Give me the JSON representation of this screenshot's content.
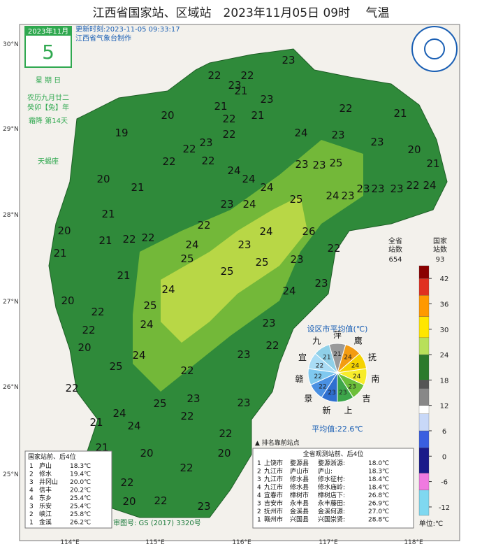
{
  "title": "江西省国家站、区域站　2023年11月05日 09时　 气温",
  "date_box": {
    "month": "2023年11月",
    "day": "5",
    "weekday": "星 期 日",
    "lunar": "农历九月廿二",
    "year": "癸卯【兔】年",
    "term": "霜降 第14天",
    "zodiac": "天蝎座"
  },
  "update": "更新时刻:2023-11-05 09:33:17",
  "maker": "江西省气象台制作",
  "lat_labels": [
    "30°N",
    "29°N",
    "28°N",
    "27°N",
    "26°N",
    "25°N"
  ],
  "lon_labels": [
    "114°E",
    "115°E",
    "116°E",
    "117°E",
    "118°E"
  ],
  "stations": [
    22,
    22,
    23,
    23,
    21,
    23,
    21,
    21,
    22,
    21,
    20,
    22,
    19,
    22,
    24,
    23,
    22,
    23,
    23,
    25,
    23,
    20,
    21,
    22,
    22,
    24,
    24,
    24,
    23,
    23,
    23,
    23,
    22,
    24,
    20,
    21,
    25,
    24,
    23,
    21,
    22,
    22,
    23,
    24,
    22,
    24,
    26,
    24,
    23,
    22,
    20,
    21,
    21,
    25,
    25,
    25,
    23,
    21,
    24,
    23,
    20,
    25,
    24,
    22,
    23,
    24,
    22,
    22,
    24,
    20,
    23,
    25,
    22,
    25,
    23,
    23,
    22,
    24,
    21,
    24,
    22,
    22,
    21,
    20,
    20,
    22,
    22,
    20,
    20,
    22,
    23
  ],
  "pie": {
    "title": "设区市平均值(℃)",
    "categories": [
      "萍",
      "鹰",
      "抚",
      "南",
      "吉",
      "上",
      "新",
      "景",
      "赣",
      "宜",
      "九"
    ],
    "values": [
      21,
      24,
      24,
      24,
      23,
      23,
      23,
      22,
      22,
      22,
      21
    ],
    "colors": [
      "#9a9a9a",
      "#f39c12",
      "#f5d300",
      "#f7ec2a",
      "#6cbf3a",
      "#3da64a",
      "#2f6fd0",
      "#4a90e2",
      "#7fc8ef",
      "#a9dcf5",
      "#8fd0e8"
    ],
    "average": "平均值:22.6℃"
  },
  "legend": {
    "header_all": "全省\n站数",
    "count_all": "654",
    "header_nat": "国家\n站数",
    "count_nat": "93",
    "ticks": [
      42,
      36,
      30,
      24,
      18,
      12,
      6,
      0,
      -6,
      -12
    ],
    "lim": [
      -14,
      45
    ],
    "unit": "单位:℃"
  },
  "marker_note": "▲ 排名靠前站点",
  "national_table": {
    "title": "国家站前、后4位",
    "rows": [
      [
        "1",
        "庐山",
        "18.3℃"
      ],
      [
        "2",
        "修水",
        "19.4℃"
      ],
      [
        "3",
        "井冈山",
        "20.0℃"
      ],
      [
        "4",
        "信丰",
        "20.2℃"
      ],
      [
        "4",
        "东乡",
        "25.4℃"
      ],
      [
        "3",
        "乐安",
        "25.4℃"
      ],
      [
        "2",
        "峡江",
        "25.8℃"
      ],
      [
        "1",
        "金溪",
        "26.2℃"
      ]
    ]
  },
  "province_table": {
    "title": "全省观测站前、后4位",
    "rows": [
      [
        "1",
        "上饶市",
        "婺源县",
        "婺源浙源:",
        "18.0℃"
      ],
      [
        "2",
        "九江市",
        "庐山市",
        "庐山:",
        "18.3℃"
      ],
      [
        "3",
        "九江市",
        "修水县",
        "修水征村:",
        "18.4℃"
      ],
      [
        "4",
        "九江市",
        "修水县",
        "修水庙岭:",
        "18.4℃"
      ],
      [
        "4",
        "宜春市",
        "樟树市",
        "樟树店下:",
        "26.8℃"
      ],
      [
        "3",
        "吉安市",
        "永丰县",
        "永丰藤田:",
        "26.9℃"
      ],
      [
        "2",
        "抚州市",
        "金溪县",
        "金溪何源:",
        "27.0℃"
      ],
      [
        "1",
        "赣州市",
        "兴国县",
        "兴国崇贤:",
        "28.8℃"
      ]
    ]
  },
  "approval": "审图号: GS (2017) 3320号"
}
